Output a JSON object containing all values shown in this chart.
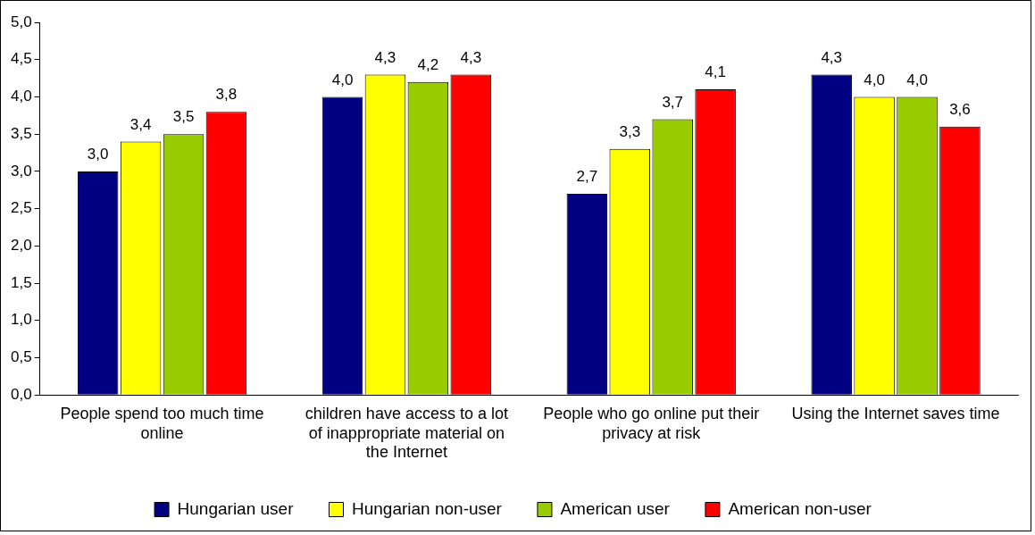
{
  "chart_data": {
    "type": "bar",
    "categories": [
      "People spend too much time online",
      "children have access to a lot of inappropriate material on the Internet",
      "People who go online put their privacy at risk",
      "Using the Internet saves time"
    ],
    "series": [
      {
        "name": "Hungarian user",
        "color": "#000080",
        "values": [
          3.0,
          4.0,
          2.7,
          4.3
        ],
        "value_labels": [
          "3,0",
          "4,0",
          "2,7",
          "4,3"
        ]
      },
      {
        "name": "Hungarian non-user",
        "color": "#ffff00",
        "values": [
          3.4,
          4.3,
          3.3,
          4.0
        ],
        "value_labels": [
          "3,4",
          "4,3",
          "3,3",
          "4,0"
        ]
      },
      {
        "name": "American user",
        "color": "#99cc00",
        "values": [
          3.5,
          4.2,
          3.7,
          4.0
        ],
        "value_labels": [
          "3,5",
          "4,2",
          "3,7",
          "4,0"
        ]
      },
      {
        "name": "American non-user",
        "color": "#ff0000",
        "values": [
          3.8,
          4.3,
          4.1,
          3.6
        ],
        "value_labels": [
          "3,8",
          "4,3",
          "4,1",
          "3,6"
        ]
      }
    ],
    "ylim": [
      0,
      5
    ],
    "yticks": [
      {
        "value": 0,
        "label": "0,0"
      },
      {
        "value": 0.5,
        "label": "0,5"
      },
      {
        "value": 1,
        "label": "1,0"
      },
      {
        "value": 1.5,
        "label": "1,5"
      },
      {
        "value": 2,
        "label": "2,0"
      },
      {
        "value": 2.5,
        "label": "2,5"
      },
      {
        "value": 3,
        "label": "3,0"
      },
      {
        "value": 3.5,
        "label": "3,5"
      },
      {
        "value": 4,
        "label": "4,0"
      },
      {
        "value": 4.5,
        "label": "4,5"
      },
      {
        "value": 5,
        "label": "5,0"
      }
    ],
    "grid": false,
    "legend": "bottom"
  }
}
